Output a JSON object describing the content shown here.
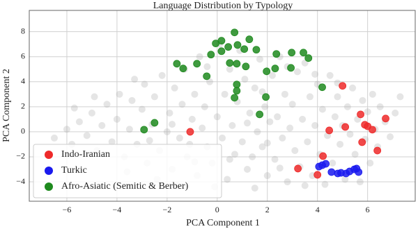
{
  "chart_data": {
    "type": "scatter",
    "title": "Language Distribution by Typology",
    "xlabel": "PCA Component 1",
    "ylabel": "PCA Component 2",
    "xlim": [
      -7.5,
      7.9
    ],
    "ylim": [
      -5.55,
      9.7
    ],
    "xticks": [
      {
        "value": -6,
        "label": "−6"
      },
      {
        "value": -4,
        "label": "−4"
      },
      {
        "value": -2,
        "label": "−2"
      },
      0,
      2,
      4,
      6
    ],
    "yticks": [
      {
        "value": -4,
        "label": "−4"
      },
      {
        "value": -2,
        "label": "−2"
      },
      0,
      2,
      4,
      6,
      8
    ],
    "grid": true,
    "legend": "lower left",
    "series": [
      {
        "color": "#aaaaaa",
        "x": [
          -6.5,
          -6,
          -5.8,
          -5.5,
          -5.2,
          -5,
          -4.8,
          -4.6,
          -4.4,
          -4.2,
          -4,
          -3.9,
          -3.7,
          -3.5,
          -3.4,
          -3.2,
          -3,
          -2.9,
          -2.8,
          -2.6,
          -2.5,
          -2.3,
          -2.2,
          -2,
          -1.9,
          -1.8,
          -1.7,
          -1.5,
          -1.4,
          -1.3,
          -1.2,
          -1,
          -0.9,
          -0.8,
          -0.7,
          -0.6,
          -0.5,
          -0.4,
          -0.3,
          -0.2,
          0,
          0.1,
          0.2,
          0.3,
          0.4,
          0.5,
          0.6,
          0.7,
          0.8,
          0.9,
          1,
          1.1,
          1.2,
          1.3,
          1.4,
          1.5,
          1.6,
          1.7,
          1.8,
          1.9,
          2,
          2.1,
          2.2,
          2.3,
          2.4,
          2.5,
          2.6,
          2.7,
          2.8,
          2.9,
          3,
          3.1,
          3.2,
          3.3,
          3.4,
          3.5,
          3.6,
          3.7,
          3.8,
          3.9,
          4,
          4.1,
          4.2,
          4.3,
          4.4,
          4.5,
          4.6,
          4.7,
          4.8,
          4.9,
          5,
          5.1,
          5.2,
          5.3,
          5.4,
          5.5,
          5.6,
          5.7,
          5.8,
          5.9,
          6,
          6.1,
          6.2,
          6.3,
          6.4,
          6.5,
          6.7,
          6.9,
          7.1,
          7.3,
          -3.6,
          -2.4,
          -1.6,
          -0.1,
          1.5,
          2.5,
          3.5,
          -1.1,
          0.5,
          -2.7,
          1.8,
          -0.4,
          2.8,
          3.9,
          4.8,
          -4.9,
          -3.3,
          -5.7,
          2,
          -0.9,
          1.2,
          -1.8
        ],
        "values": [
          -0.5,
          0.2,
          -1,
          0.8,
          -0.3,
          1.5,
          -1.5,
          0.5,
          2.2,
          -0.8,
          1,
          3,
          -2,
          0.2,
          2.5,
          -1,
          1.8,
          3.8,
          -2.5,
          0.6,
          2.8,
          -1.5,
          4.5,
          0,
          1.5,
          -3,
          3.5,
          -0.5,
          2.2,
          5,
          -2,
          1,
          3,
          -3.5,
          6,
          0.3,
          2,
          -1.2,
          4,
          -2.5,
          1.2,
          7,
          -0.5,
          3,
          -3.8,
          5,
          0.5,
          -1.8,
          2.4,
          6.5,
          -0.8,
          4.2,
          -3,
          1.5,
          -2,
          3.5,
          0,
          5.8,
          -1.2,
          2,
          -3.5,
          0.8,
          4.5,
          -2.2,
          1.2,
          6,
          -0.5,
          3,
          -4,
          0.3,
          2.2,
          -1.5,
          4.8,
          -2.8,
          1,
          5.5,
          -0.8,
          2.8,
          -3.5,
          0.5,
          3.8,
          -1.8,
          1.8,
          -4.2,
          -0.3,
          4.5,
          -2.5,
          1.2,
          2.8,
          -1,
          0.5,
          -3.8,
          2,
          -0.2,
          3.5,
          -1.8,
          1,
          -4,
          2.5,
          -0.6,
          1.6,
          -2.5,
          3,
          0.2,
          -1.2,
          2,
          0.8,
          -0.4,
          1.5,
          2.8,
          -3.2,
          -3.8,
          -4.3,
          -4.4,
          -4.5,
          -2.9,
          -4.3,
          -1,
          -2.2,
          -0.7,
          3.2,
          5.2,
          5.2,
          4.6,
          3.9,
          2.8,
          4.2,
          1.9,
          -0.9,
          -2.4,
          0.7,
          0.6
        ]
      },
      {
        "name": "Indo-Iranian",
        "color": "#ee2a2a",
        "x": [
          5.0,
          5.72,
          5.89,
          6.0,
          6.19,
          6.72,
          5.11,
          4.47,
          5.78,
          6.39,
          4.22,
          3.22,
          4.0,
          -1.08
        ],
        "values": [
          3.67,
          1.39,
          0.56,
          0.44,
          0.17,
          1.06,
          0.39,
          0.11,
          -0.83,
          -1.5,
          -1.94,
          -2.94,
          -3.44,
          0
        ]
      },
      {
        "name": "Turkic",
        "color": "#1a1aee",
        "x": [
          4.06,
          4.19,
          4.33,
          4.56,
          4.81,
          4.94,
          5.14,
          5.28,
          5.47,
          5.64,
          5.56
        ],
        "values": [
          -2.78,
          -2.67,
          -2.56,
          -3.22,
          -3.33,
          -3.28,
          -3.33,
          -3.17,
          -3.0,
          -3.22,
          -2.94
        ]
      },
      {
        "name": "Afro-Asiatic (Semitic & Berber)",
        "color": "#1e8a1e",
        "x": [
          0.69,
          0.17,
          -0.06,
          0.44,
          0.17,
          0.81,
          1.08,
          1.56,
          1.28,
          2.36,
          2.97,
          3.44,
          3.64,
          2.94,
          2.31,
          1.97,
          1.14,
          0.5,
          0.78,
          -0.25,
          -0.81,
          -1.36,
          -1.61,
          -0.42,
          0.78,
          0.78,
          0.69,
          1.69,
          1.94,
          4.19,
          -2.5,
          -2.92
        ],
        "values": [
          7.94,
          7.28,
          7.06,
          6.78,
          6.44,
          6.94,
          6.61,
          6.56,
          7.39,
          6.22,
          6.33,
          6.33,
          5.89,
          5.11,
          5.06,
          4.83,
          5.22,
          5.5,
          5.44,
          6.17,
          5.44,
          5.06,
          5.44,
          4.44,
          3.78,
          3.28,
          2.72,
          1.39,
          2.78,
          3.56,
          0.72,
          0.17
        ]
      }
    ]
  }
}
